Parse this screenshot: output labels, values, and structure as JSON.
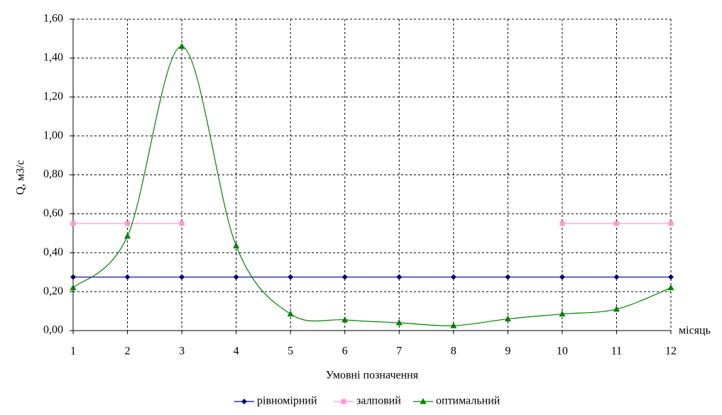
{
  "chart_data": {
    "type": "line",
    "ylabel": "Q, м3/с",
    "xlabel": "місяць",
    "legend_title": "Умовні позначення",
    "x": [
      1,
      2,
      3,
      4,
      5,
      6,
      7,
      8,
      9,
      10,
      11,
      12
    ],
    "xlim": [
      1,
      12
    ],
    "xticks": [
      1,
      2,
      3,
      4,
      5,
      6,
      7,
      8,
      9,
      10,
      11,
      12
    ],
    "ylim": [
      0,
      1.6
    ],
    "yticks": [
      {
        "value": 0,
        "label": "0,00"
      },
      {
        "value": 0.2,
        "label": "0,20"
      },
      {
        "value": 0.4,
        "label": "0,40"
      },
      {
        "value": 0.6,
        "label": "0,60"
      },
      {
        "value": 0.8,
        "label": "0,80"
      },
      {
        "value": 1.0,
        "label": "1,00"
      },
      {
        "value": 1.2,
        "label": "1,20"
      },
      {
        "value": 1.4,
        "label": "1,40"
      },
      {
        "value": 1.6,
        "label": "1,60"
      }
    ],
    "grid": true,
    "legend": "bottom",
    "series": [
      {
        "name": "рівномірний",
        "color": "#000080",
        "marker": "diamond",
        "smooth": false,
        "values": [
          0.275,
          0.275,
          0.275,
          0.275,
          0.275,
          0.275,
          0.275,
          0.275,
          0.275,
          0.275,
          0.275,
          0.275
        ]
      },
      {
        "name": "залповий",
        "color": "#ff99cc",
        "marker": "square",
        "smooth": false,
        "values": [
          0.55,
          0.55,
          0.55,
          null,
          null,
          null,
          null,
          null,
          null,
          0.55,
          0.55,
          0.55
        ]
      },
      {
        "name": "оптимальний",
        "color": "#008000",
        "marker": "triangle",
        "smooth": true,
        "values": [
          0.22,
          0.485,
          1.46,
          0.435,
          0.085,
          0.055,
          0.04,
          0.025,
          0.06,
          0.085,
          0.11,
          0.22
        ]
      }
    ]
  }
}
